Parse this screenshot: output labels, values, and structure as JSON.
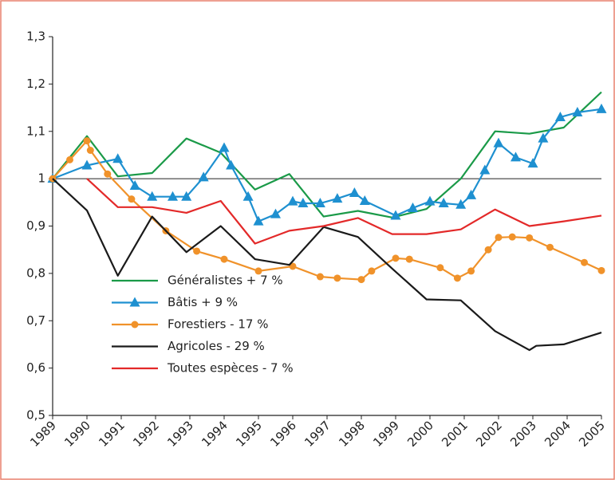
{
  "chart_data": {
    "type": "line",
    "xlim": [
      1989,
      2005
    ],
    "ylim": [
      0.5,
      1.3
    ],
    "xticks": [
      1989,
      1990,
      1991,
      1992,
      1993,
      1994,
      1995,
      1996,
      1997,
      1998,
      1999,
      2000,
      2001,
      2002,
      2003,
      2004,
      2005
    ],
    "yticks": [
      {
        "value": 0.5,
        "label": "0,5"
      },
      {
        "value": 0.6,
        "label": "0,6"
      },
      {
        "value": 0.7,
        "label": "0,7"
      },
      {
        "value": 0.8,
        "label": "0,8"
      },
      {
        "value": 0.9,
        "label": "0,9"
      },
      1,
      {
        "value": 1.1,
        "label": "1,1"
      },
      {
        "value": 1.2,
        "label": "1,2"
      },
      {
        "value": 1.3,
        "label": "1,3"
      }
    ],
    "hline": 1,
    "series": [
      {
        "name": "Généralistes + 7 %",
        "color": "#1a9a48",
        "marker": "none",
        "x": [
          1989,
          1990,
          1990.9,
          1991.9,
          1992.9,
          1993.9,
          1994.9,
          1995.9,
          1996.9,
          1997.9,
          1998.9,
          1999.9,
          2000.9,
          2001.9,
          2002.9,
          2003.9,
          2005
        ],
        "values": [
          1.0,
          1.09,
          1.005,
          1.012,
          1.085,
          1.055,
          0.977,
          1.01,
          0.92,
          0.932,
          0.918,
          0.936,
          1.0,
          1.1,
          1.095,
          1.108,
          1.183
        ]
      },
      {
        "name": "Bâtis + 9 %",
        "color": "#1e90d0",
        "marker": "triangle",
        "x": [
          1989,
          1990,
          1990.9,
          1991.4,
          1991.9,
          1992.5,
          1992.9,
          1993.4,
          1994.0,
          1994.2,
          1994.7,
          1995.0,
          1995.5,
          1996.0,
          1996.3,
          1996.8,
          1997.3,
          1997.8,
          1998.1,
          1999.0,
          1999.5,
          2000.0,
          2000.4,
          2000.9,
          2001.2,
          2001.6,
          2002.0,
          2002.5,
          2003.0,
          2003.3,
          2003.8,
          2004.3,
          2005
        ],
        "values": [
          1.0,
          1.028,
          1.042,
          0.985,
          0.962,
          0.962,
          0.962,
          1.003,
          1.065,
          1.028,
          0.962,
          0.91,
          0.925,
          0.952,
          0.948,
          0.948,
          0.958,
          0.97,
          0.953,
          0.922,
          0.938,
          0.952,
          0.948,
          0.945,
          0.965,
          1.018,
          1.075,
          1.045,
          1.032,
          1.085,
          1.13,
          1.14,
          1.147
        ]
      },
      {
        "name": "Forestiers - 17 %",
        "color": "#f0922a",
        "marker": "circle",
        "x": [
          1989,
          1989.5,
          1990,
          1990.1,
          1990.6,
          1991.3,
          1992.3,
          1993.2,
          1994.0,
          1995.0,
          1996.0,
          1996.8,
          1997.3,
          1998.0,
          1998.3,
          1999.0,
          1999.4,
          2000.3,
          2000.8,
          2001.2,
          2001.7,
          2002.0,
          2002.4,
          2002.9,
          2003.5,
          2004.5,
          2005
        ],
        "values": [
          1.0,
          1.04,
          1.08,
          1.06,
          1.01,
          0.957,
          0.89,
          0.847,
          0.83,
          0.805,
          0.815,
          0.793,
          0.79,
          0.787,
          0.805,
          0.832,
          0.83,
          0.812,
          0.79,
          0.805,
          0.85,
          0.876,
          0.877,
          0.875,
          0.855,
          0.823,
          0.806
        ]
      },
      {
        "name": "Agricoles - 29 %",
        "color": "#1a1a1a",
        "marker": "none",
        "x": [
          1989,
          1990,
          1990.9,
          1991.9,
          1992.9,
          1993.9,
          1994.9,
          1995.9,
          1996.9,
          1997.9,
          1998.9,
          1999.9,
          2000.9,
          2001.9,
          2002.9,
          2003.1,
          2003.9,
          2005
        ],
        "values": [
          1.0,
          0.933,
          0.795,
          0.92,
          0.845,
          0.9,
          0.83,
          0.818,
          0.898,
          0.877,
          0.81,
          0.745,
          0.743,
          0.678,
          0.638,
          0.647,
          0.65,
          0.675
        ]
      },
      {
        "name": "Toutes espèces - 7 %",
        "color": "#e32929",
        "marker": "none",
        "x": [
          1990,
          1990.9,
          1991.9,
          1992.9,
          1993.9,
          1994.9,
          1995.9,
          1996.9,
          1997.9,
          1998.9,
          1999.9,
          2000.9,
          2001.9,
          2002.9,
          2003.9,
          2005
        ],
        "values": [
          1.0,
          0.94,
          0.94,
          0.928,
          0.953,
          0.863,
          0.89,
          0.9,
          0.917,
          0.883,
          0.883,
          0.893,
          0.935,
          0.9,
          0.91,
          0.922
        ]
      }
    ]
  }
}
